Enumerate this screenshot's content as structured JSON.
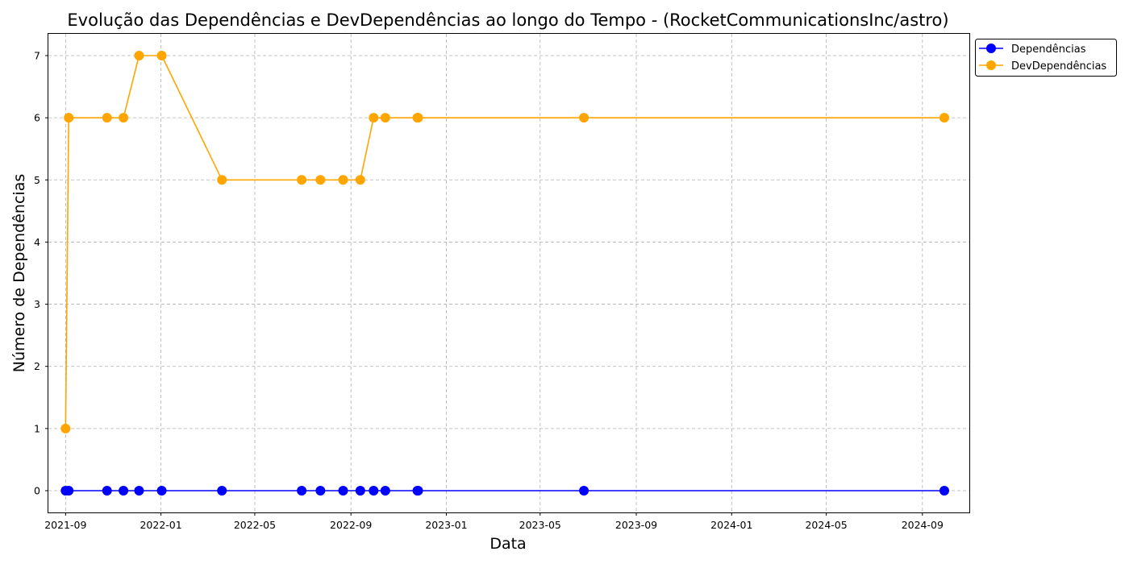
{
  "chart_data": {
    "type": "line",
    "title": "Evolução das Dependências e DevDependências ao longo do Tempo - (RocketCommunicationsInc/astro)",
    "xlabel": "Data",
    "ylabel": "Número de Dependências",
    "x_ticks": [
      "2021-09",
      "2022-01",
      "2022-05",
      "2022-09",
      "2023-01",
      "2023-05",
      "2023-09",
      "2024-01",
      "2024-05",
      "2024-09"
    ],
    "y_ticks": [
      0,
      1,
      2,
      3,
      4,
      5,
      6,
      7
    ],
    "xlim": [
      "2021-08-10",
      "2024-10-31"
    ],
    "ylim": [
      -0.35,
      7.35
    ],
    "grid": true,
    "legend_position": "outside top-right",
    "x": [
      "2021-09-01",
      "2021-09-05",
      "2021-10-24",
      "2021-11-14",
      "2021-12-04",
      "2022-01-02",
      "2022-03-20",
      "2022-06-30",
      "2022-07-24",
      "2022-08-22",
      "2022-09-13",
      "2022-09-30",
      "2022-10-15",
      "2022-11-25",
      "2022-11-26",
      "2023-06-26",
      "2024-09-29"
    ],
    "series": [
      {
        "name": "Dependências",
        "color": "#0000ff",
        "values": [
          0,
          0,
          0,
          0,
          0,
          0,
          0,
          0,
          0,
          0,
          0,
          0,
          0,
          0,
          0,
          0,
          0
        ]
      },
      {
        "name": "DevDependências",
        "color": "#ffa500",
        "values": [
          1,
          6,
          6,
          6,
          7,
          7,
          5,
          5,
          5,
          5,
          5,
          6,
          6,
          6,
          6,
          6,
          6
        ]
      }
    ]
  }
}
